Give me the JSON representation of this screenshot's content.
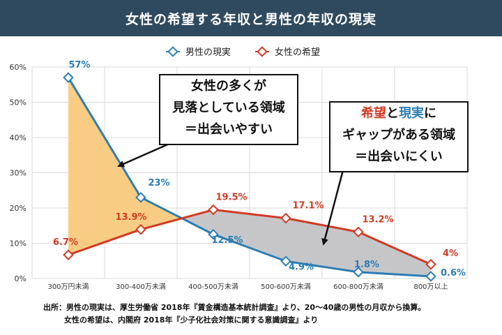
{
  "header": {
    "title": "女性の希望する年収と男性の年収の現実"
  },
  "chart_data": {
    "type": "line",
    "categories": [
      "300万円未満",
      "300-400万未満",
      "400-500万未満",
      "500-600万未満",
      "600-800万未満",
      "800万以上"
    ],
    "series": [
      {
        "name": "男性の現実",
        "values": [
          57,
          23,
          12.5,
          4.9,
          1.8,
          0.6
        ],
        "labels": [
          "57%",
          "23%",
          "12.5%",
          "4.9%",
          "1.8%",
          "0.6%"
        ],
        "color": "#2b7db3"
      },
      {
        "name": "女性の希望",
        "values": [
          6.7,
          13.9,
          19.5,
          17.1,
          13.2,
          4
        ],
        "labels": [
          "6.7%",
          "13.9%",
          "19.5%",
          "17.1%",
          "13.2%",
          "4%"
        ],
        "color": "#d13a24"
      }
    ],
    "ylim": [
      0,
      60
    ],
    "yticks": [
      0,
      10,
      20,
      30,
      40,
      50,
      60
    ],
    "ytick_labels": [
      "0%",
      "10%",
      "20%",
      "30%",
      "40%",
      "50%",
      "60%"
    ],
    "grid": true,
    "legend": "top-center",
    "fill_colors": {
      "women_above": "#f8cd83",
      "men_above": "#c6c6c8"
    }
  },
  "annotations": {
    "left": {
      "lines": [
        "女性の多くが",
        "見落としている領域",
        "＝出会いやすい"
      ]
    },
    "right": {
      "line1": {
        "part1": "希望",
        "part2": "と",
        "part3": "現実",
        "part4": "に"
      },
      "line2": "ギャップがある領域",
      "line3": "＝出会いにくい"
    }
  },
  "source": {
    "line1": "出所：男性の現実は、厚生労働省 2018年『賃金構造基本統計調査』より、20〜40歳の男性の月収から換算。",
    "line2": "女性の希望は、内閣府 2018年『少子化社会対策に関する意識調査』より"
  }
}
